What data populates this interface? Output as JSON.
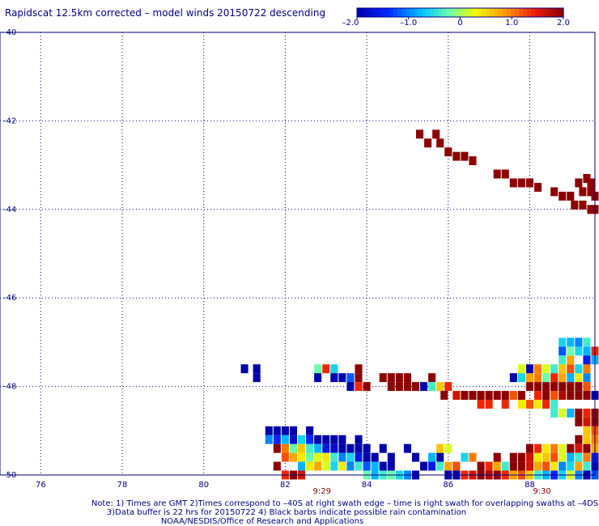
{
  "title": "Rapidscat 12.5km corrected – model winds 20150722 descending",
  "colorbar": {
    "ticks": [
      "–2.0",
      "–1.0",
      "0",
      "1.0",
      "2.0"
    ],
    "values": [
      -2.0,
      -1.0,
      0.0,
      1.0,
      2.0
    ]
  },
  "chart_data": {
    "type": "heatmap",
    "xlim": [
      75,
      89.6
    ],
    "ylim": [
      -50,
      -40
    ],
    "x_ticks": [
      76,
      78,
      80,
      82,
      84,
      86,
      88
    ],
    "y_ticks": [
      -40,
      -42,
      -44,
      -46,
      -48,
      -50
    ],
    "x_tick_labels": [
      "76",
      "78",
      "80",
      "82",
      "84",
      "86",
      "88"
    ],
    "y_tick_labels": [
      "-40",
      "-42",
      "-44",
      "-46",
      "-48",
      "-50"
    ],
    "grid": true,
    "time_labels": [
      {
        "text": "9:29",
        "x": 82.9
      },
      {
        "text": "9:30",
        "x": 88.3
      }
    ],
    "cell_size_deg": [
      0.18,
      0.2
    ],
    "cells_lon_lat_value": [
      [
        85.3,
        -42.3,
        2.0
      ],
      [
        85.5,
        -42.5,
        2.0
      ],
      [
        85.7,
        -42.3,
        2.0
      ],
      [
        85.8,
        -42.5,
        2.0
      ],
      [
        86.0,
        -42.7,
        2.0
      ],
      [
        86.2,
        -42.8,
        2.0
      ],
      [
        86.4,
        -42.8,
        2.0
      ],
      [
        86.6,
        -42.9,
        2.0
      ],
      [
        87.2,
        -43.2,
        2.0
      ],
      [
        87.4,
        -43.2,
        2.0
      ],
      [
        87.6,
        -43.4,
        2.0
      ],
      [
        87.8,
        -43.4,
        2.0
      ],
      [
        88.0,
        -43.4,
        2.0
      ],
      [
        88.2,
        -43.5,
        2.0
      ],
      [
        88.6,
        -43.6,
        2.0
      ],
      [
        88.8,
        -43.7,
        2.0
      ],
      [
        89.0,
        -43.7,
        2.0
      ],
      [
        89.1,
        -43.9,
        2.0
      ],
      [
        89.3,
        -43.9,
        2.0
      ],
      [
        89.5,
        -44.0,
        2.0
      ],
      [
        89.4,
        -43.3,
        2.0
      ],
      [
        89.2,
        -43.4,
        2.0
      ],
      [
        89.3,
        -43.6,
        2.0
      ],
      [
        89.5,
        -43.6,
        2.0
      ],
      [
        89.5,
        -43.4,
        2.0
      ],
      [
        89.6,
        -43.7,
        2.0
      ],
      [
        89.6,
        -44.0,
        2.0
      ],
      [
        81.0,
        -47.6,
        -2.0
      ],
      [
        81.3,
        -47.6,
        -2.0
      ],
      [
        81.3,
        -47.8,
        -2.0
      ],
      [
        82.8,
        -47.6,
        -0.2
      ],
      [
        83.0,
        -47.6,
        1.4
      ],
      [
        83.2,
        -47.6,
        -0.6
      ],
      [
        82.8,
        -47.8,
        -2.0
      ],
      [
        83.2,
        -47.8,
        -2.0
      ],
      [
        83.4,
        -47.8,
        -2.0
      ],
      [
        83.6,
        -47.8,
        -1.2
      ],
      [
        83.8,
        -47.6,
        2.0
      ],
      [
        83.8,
        -47.8,
        2.0
      ],
      [
        83.6,
        -48.0,
        -2.0
      ],
      [
        83.8,
        -48.0,
        1.4
      ],
      [
        84.0,
        -48.0,
        2.0
      ],
      [
        84.4,
        -47.8,
        2.0
      ],
      [
        84.6,
        -47.8,
        2.0
      ],
      [
        84.8,
        -47.8,
        2.0
      ],
      [
        85.0,
        -47.8,
        2.0
      ],
      [
        84.6,
        -48.0,
        2.0
      ],
      [
        84.8,
        -48.0,
        2.0
      ],
      [
        85.0,
        -48.0,
        2.0
      ],
      [
        85.2,
        -48.0,
        2.0
      ],
      [
        85.4,
        -48.0,
        -2.0
      ],
      [
        85.6,
        -47.8,
        2.0
      ],
      [
        85.6,
        -48.0,
        -0.4
      ],
      [
        85.8,
        -48.0,
        0.6
      ],
      [
        86.0,
        -48.0,
        1.4
      ],
      [
        85.9,
        -48.2,
        2.0
      ],
      [
        86.2,
        -48.2,
        1.6
      ],
      [
        86.4,
        -48.2,
        2.0
      ],
      [
        86.6,
        -48.2,
        2.0
      ],
      [
        86.8,
        -48.2,
        2.0
      ],
      [
        87.0,
        -48.2,
        2.0
      ],
      [
        87.2,
        -48.2,
        2.0
      ],
      [
        87.4,
        -48.2,
        2.0
      ],
      [
        87.6,
        -48.2,
        1.2
      ],
      [
        87.8,
        -48.2,
        2.0
      ],
      [
        86.8,
        -48.4,
        1.4
      ],
      [
        87.0,
        -48.4,
        1.4
      ],
      [
        87.4,
        -48.4,
        1.4
      ],
      [
        87.8,
        -48.4,
        0.4
      ],
      [
        88.0,
        -48.4,
        1.2
      ],
      [
        88.2,
        -48.4,
        0.4
      ],
      [
        88.4,
        -48.4,
        1.4
      ],
      [
        88.6,
        -48.4,
        -0.4
      ],
      [
        87.6,
        -47.8,
        -2.0
      ],
      [
        87.8,
        -47.8,
        -0.6
      ],
      [
        88.0,
        -47.8,
        0.8
      ],
      [
        88.2,
        -47.8,
        1.0
      ],
      [
        88.4,
        -47.8,
        -0.2
      ],
      [
        88.6,
        -47.8,
        1.4
      ],
      [
        88.8,
        -47.8,
        0.8
      ],
      [
        89.0,
        -47.8,
        -0.8
      ],
      [
        89.2,
        -47.8,
        0.4
      ],
      [
        89.4,
        -47.8,
        -1.0
      ],
      [
        88.0,
        -48.0,
        2.0
      ],
      [
        88.2,
        -48.0,
        2.0
      ],
      [
        88.4,
        -48.0,
        2.0
      ],
      [
        88.6,
        -48.0,
        2.0
      ],
      [
        88.8,
        -48.0,
        2.0
      ],
      [
        89.0,
        -48.0,
        2.0
      ],
      [
        89.2,
        -48.0,
        2.0
      ],
      [
        89.4,
        -48.0,
        1.2
      ],
      [
        88.2,
        -48.2,
        1.4
      ],
      [
        88.4,
        -48.2,
        2.0
      ],
      [
        88.6,
        -48.2,
        1.2
      ],
      [
        88.8,
        -48.2,
        1.8
      ],
      [
        89.0,
        -48.2,
        2.0
      ],
      [
        89.2,
        -48.2,
        2.0
      ],
      [
        89.4,
        -48.2,
        2.0
      ],
      [
        89.6,
        -48.2,
        -2.0
      ],
      [
        87.8,
        -47.6,
        0.2
      ],
      [
        88.0,
        -47.6,
        -2.0
      ],
      [
        88.2,
        -47.6,
        1.0
      ],
      [
        88.4,
        -47.6,
        0.2
      ],
      [
        88.6,
        -47.6,
        -0.4
      ],
      [
        88.8,
        -47.6,
        0.6
      ],
      [
        89.0,
        -47.6,
        1.2
      ],
      [
        89.2,
        -47.6,
        -0.6
      ],
      [
        89.4,
        -47.6,
        1.0
      ],
      [
        88.8,
        -47.4,
        -0.4
      ],
      [
        89.0,
        -47.4,
        0.8
      ],
      [
        89.4,
        -47.4,
        -1.6
      ],
      [
        89.6,
        -47.4,
        -0.8
      ],
      [
        88.8,
        -47.2,
        -1.2
      ],
      [
        89.0,
        -47.2,
        -0.2
      ],
      [
        89.2,
        -47.2,
        -0.6
      ],
      [
        89.4,
        -47.2,
        -0.8
      ],
      [
        89.6,
        -47.2,
        1.4
      ],
      [
        88.8,
        -47.0,
        -0.6
      ],
      [
        89.0,
        -47.0,
        -0.8
      ],
      [
        89.2,
        -47.0,
        -1.0
      ],
      [
        89.4,
        -47.0,
        -0.4
      ],
      [
        88.6,
        -48.6,
        -0.4
      ],
      [
        88.8,
        -48.6,
        0.2
      ],
      [
        89.0,
        -48.6,
        -0.8
      ],
      [
        89.2,
        -48.6,
        2.0
      ],
      [
        89.4,
        -48.6,
        1.4
      ],
      [
        89.6,
        -48.6,
        2.0
      ],
      [
        89.2,
        -48.8,
        2.0
      ],
      [
        89.4,
        -48.8,
        1.6
      ],
      [
        89.6,
        -48.8,
        2.0
      ],
      [
        89.4,
        -49.0,
        0.6
      ],
      [
        89.6,
        -49.0,
        1.2
      ],
      [
        89.2,
        -49.2,
        2.0
      ],
      [
        89.4,
        -49.2,
        0.6
      ],
      [
        89.6,
        -49.2,
        1.0
      ],
      [
        89.0,
        -49.4,
        2.0
      ],
      [
        89.2,
        -49.4,
        1.6
      ],
      [
        89.4,
        -49.4,
        2.0
      ],
      [
        89.6,
        -49.4,
        0.8
      ],
      [
        81.6,
        -49.0,
        -2.0
      ],
      [
        81.8,
        -49.0,
        -2.0
      ],
      [
        82.0,
        -49.0,
        -2.0
      ],
      [
        82.2,
        -49.0,
        -2.0
      ],
      [
        82.6,
        -49.0,
        -2.0
      ],
      [
        81.6,
        -49.2,
        -1.0
      ],
      [
        81.8,
        -49.2,
        -1.4
      ],
      [
        82.0,
        -49.2,
        -0.8
      ],
      [
        82.2,
        -49.2,
        -1.8
      ],
      [
        82.4,
        -49.2,
        -0.6
      ],
      [
        82.6,
        -49.2,
        -1.4
      ],
      [
        82.8,
        -49.2,
        -2.0
      ],
      [
        83.0,
        -49.2,
        -2.0
      ],
      [
        83.2,
        -49.2,
        -2.0
      ],
      [
        83.4,
        -49.2,
        -2.0
      ],
      [
        83.8,
        -49.2,
        -2.0
      ],
      [
        81.8,
        -49.4,
        2.0
      ],
      [
        82.0,
        -49.4,
        1.0
      ],
      [
        82.2,
        -49.4,
        -0.2
      ],
      [
        82.4,
        -49.4,
        0.6
      ],
      [
        82.6,
        -49.4,
        -0.4
      ],
      [
        82.8,
        -49.4,
        -0.8
      ],
      [
        83.0,
        -49.4,
        -1.6
      ],
      [
        83.2,
        -49.4,
        -1.8
      ],
      [
        83.4,
        -49.4,
        -2.0
      ],
      [
        83.6,
        -49.4,
        -2.0
      ],
      [
        83.8,
        -49.4,
        -2.0
      ],
      [
        84.0,
        -49.4,
        -2.0
      ],
      [
        82.0,
        -49.6,
        1.2
      ],
      [
        82.2,
        -49.6,
        0.8
      ],
      [
        82.4,
        -49.6,
        0.4
      ],
      [
        82.6,
        -49.6,
        -0.2
      ],
      [
        82.8,
        -49.6,
        0.2
      ],
      [
        83.0,
        -49.6,
        0.4
      ],
      [
        83.2,
        -49.6,
        -0.4
      ],
      [
        83.4,
        -49.6,
        -1.0
      ],
      [
        83.6,
        -49.6,
        -0.6
      ],
      [
        83.8,
        -49.6,
        -1.6
      ],
      [
        84.0,
        -49.6,
        -2.0
      ],
      [
        84.2,
        -49.6,
        -2.0
      ],
      [
        82.4,
        -49.8,
        -0.8
      ],
      [
        82.6,
        -49.8,
        0.4
      ],
      [
        82.8,
        -49.8,
        0.8
      ],
      [
        83.0,
        -49.8,
        0.2
      ],
      [
        83.2,
        -49.8,
        -0.6
      ],
      [
        83.4,
        -49.8,
        0.4
      ],
      [
        83.6,
        -49.8,
        -1.0
      ],
      [
        83.8,
        -49.8,
        -0.4
      ],
      [
        84.0,
        -49.8,
        -1.2
      ],
      [
        84.2,
        -49.8,
        -0.8
      ],
      [
        84.4,
        -49.8,
        -2.0
      ],
      [
        84.6,
        -49.8,
        -2.0
      ],
      [
        84.0,
        -50.0,
        -0.2
      ],
      [
        84.2,
        -50.0,
        -0.8
      ],
      [
        84.4,
        -50.0,
        -0.4
      ],
      [
        84.6,
        -50.0,
        -0.2
      ],
      [
        84.8,
        -50.0,
        -0.6
      ],
      [
        85.0,
        -50.0,
        -1.0
      ],
      [
        85.2,
        -50.0,
        -2.0
      ],
      [
        82.0,
        -50.0,
        1.4
      ],
      [
        82.2,
        -50.0,
        2.0
      ],
      [
        82.4,
        -50.0,
        1.6
      ],
      [
        81.8,
        -49.8,
        2.0
      ],
      [
        84.4,
        -49.4,
        -2.0
      ],
      [
        84.6,
        -49.6,
        -2.0
      ],
      [
        85.0,
        -49.4,
        -2.0
      ],
      [
        85.2,
        -49.6,
        -2.0
      ],
      [
        85.4,
        -49.8,
        -2.0
      ],
      [
        85.6,
        -49.6,
        -0.8
      ],
      [
        85.8,
        -49.6,
        -2.0
      ],
      [
        85.6,
        -49.8,
        -1.6
      ],
      [
        85.8,
        -49.8,
        -0.4
      ],
      [
        86.0,
        -49.8,
        0.8
      ],
      [
        86.2,
        -49.8,
        1.2
      ],
      [
        86.4,
        -49.6,
        -0.6
      ],
      [
        86.6,
        -49.6,
        1.0
      ],
      [
        85.8,
        -49.4,
        0.6
      ],
      [
        86.0,
        -49.4,
        0.2
      ],
      [
        86.0,
        -50.0,
        -2.0
      ],
      [
        86.2,
        -50.0,
        -2.0
      ],
      [
        86.4,
        -50.0,
        1.4
      ],
      [
        86.6,
        -50.0,
        1.6
      ],
      [
        86.8,
        -50.0,
        2.0
      ],
      [
        87.0,
        -50.0,
        1.8
      ],
      [
        87.2,
        -50.0,
        2.0
      ],
      [
        87.4,
        -50.0,
        1.4
      ],
      [
        87.6,
        -50.0,
        0.8
      ],
      [
        87.8,
        -50.0,
        1.2
      ],
      [
        88.0,
        -50.0,
        0.6
      ],
      [
        88.2,
        -50.0,
        -0.4
      ],
      [
        88.4,
        -50.0,
        -0.8
      ],
      [
        88.6,
        -50.0,
        -1.4
      ],
      [
        88.8,
        -50.0,
        -0.6
      ],
      [
        89.0,
        -50.0,
        0.2
      ],
      [
        89.2,
        -50.0,
        -1.0
      ],
      [
        89.4,
        -50.0,
        -2.0
      ],
      [
        89.6,
        -50.0,
        -1.2
      ],
      [
        86.8,
        -49.8,
        2.0
      ],
      [
        87.0,
        -49.8,
        1.4
      ],
      [
        87.2,
        -49.8,
        0.8
      ],
      [
        87.4,
        -49.8,
        -0.4
      ],
      [
        87.6,
        -49.8,
        2.0
      ],
      [
        87.8,
        -49.8,
        2.0
      ],
      [
        88.0,
        -49.8,
        1.6
      ],
      [
        88.2,
        -49.8,
        0.8
      ],
      [
        88.4,
        -49.8,
        1.2
      ],
      [
        88.6,
        -49.8,
        0.4
      ],
      [
        88.8,
        -49.8,
        -1.0
      ],
      [
        89.0,
        -49.8,
        -0.6
      ],
      [
        89.2,
        -49.8,
        0.8
      ],
      [
        89.4,
        -49.8,
        -0.4
      ],
      [
        89.6,
        -49.8,
        -1.8
      ],
      [
        87.6,
        -49.6,
        2.0
      ],
      [
        87.8,
        -49.6,
        2.0
      ],
      [
        88.0,
        -49.6,
        1.6
      ],
      [
        88.2,
        -49.6,
        0.4
      ],
      [
        88.4,
        -49.6,
        0.6
      ],
      [
        88.6,
        -49.6,
        1.2
      ],
      [
        88.8,
        -49.6,
        0.2
      ],
      [
        89.0,
        -49.6,
        -0.8
      ],
      [
        89.2,
        -49.6,
        -0.4
      ],
      [
        89.4,
        -49.6,
        1.0
      ],
      [
        89.6,
        -49.6,
        -1.6
      ],
      [
        88.0,
        -49.4,
        2.0
      ],
      [
        88.2,
        -49.4,
        1.4
      ],
      [
        88.4,
        -49.4,
        0.4
      ],
      [
        88.6,
        -49.4,
        1.0
      ],
      [
        88.8,
        -49.4,
        0.2
      ],
      [
        87.2,
        -49.6,
        2.0
      ]
    ]
  },
  "notes": [
    "Note: 1) Times are GMT 2)Times correspond to –40S at right swath edge – time is right swath for overlapping swaths at –4DS",
    "3)Data buffer is 22 hrs for 20150722 4) Black barbs indicate possible rain contamination",
    "NOAA/NESDIS/Office of Research and Applications"
  ]
}
